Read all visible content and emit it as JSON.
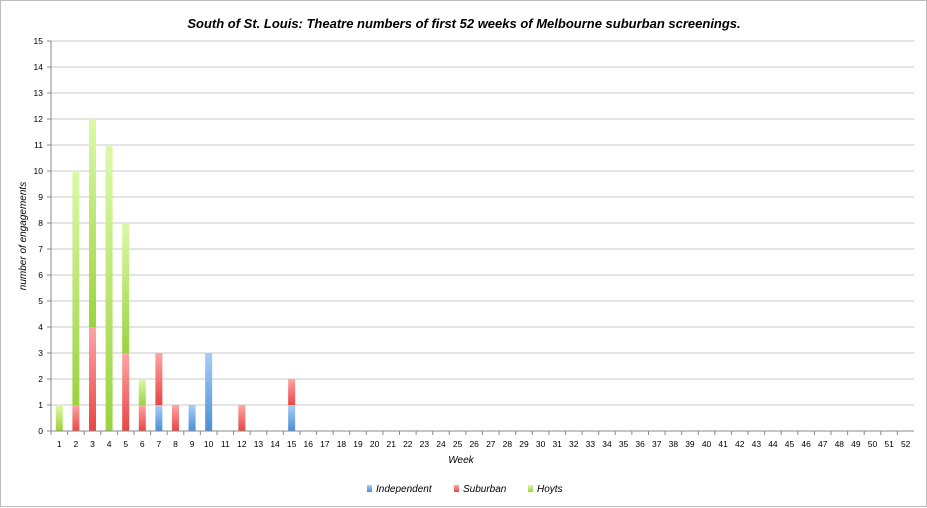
{
  "chart_data": {
    "type": "bar",
    "stacked": true,
    "title": "South of St. Louis: Theatre numbers of first 52 weeks of Melbourne suburban screenings.",
    "xlabel": "Week",
    "ylabel": "number of engagements",
    "ylim": [
      0,
      15
    ],
    "yticks": [
      0,
      1,
      2,
      3,
      4,
      5,
      6,
      7,
      8,
      9,
      10,
      11,
      12,
      13,
      14,
      15
    ],
    "grid": true,
    "legend_position": "bottom",
    "categories": [
      "1",
      "2",
      "3",
      "4",
      "5",
      "6",
      "7",
      "8",
      "9",
      "10",
      "11",
      "12",
      "13",
      "14",
      "15",
      "16",
      "17",
      "18",
      "19",
      "20",
      "21",
      "22",
      "23",
      "24",
      "25",
      "26",
      "27",
      "28",
      "29",
      "30",
      "31",
      "32",
      "33",
      "34",
      "35",
      "36",
      "37",
      "38",
      "39",
      "40",
      "41",
      "42",
      "43",
      "44",
      "45",
      "46",
      "47",
      "48",
      "49",
      "50",
      "51",
      "52"
    ],
    "series": [
      {
        "name": "Independent",
        "color": "#4a90d9",
        "values": [
          0,
          0,
          0,
          0,
          0,
          0,
          1,
          0,
          1,
          3,
          0,
          0,
          0,
          0,
          1,
          0,
          0,
          0,
          0,
          0,
          0,
          0,
          0,
          0,
          0,
          0,
          0,
          0,
          0,
          0,
          0,
          0,
          0,
          0,
          0,
          0,
          0,
          0,
          0,
          0,
          0,
          0,
          0,
          0,
          0,
          0,
          0,
          0,
          0,
          0,
          0,
          0
        ]
      },
      {
        "name": "Suburban",
        "color": "#e84545",
        "values": [
          0,
          1,
          4,
          0,
          3,
          1,
          2,
          1,
          0,
          0,
          0,
          1,
          0,
          0,
          1,
          0,
          0,
          0,
          0,
          0,
          0,
          0,
          0,
          0,
          0,
          0,
          0,
          0,
          0,
          0,
          0,
          0,
          0,
          0,
          0,
          0,
          0,
          0,
          0,
          0,
          0,
          0,
          0,
          0,
          0,
          0,
          0,
          0,
          0,
          0,
          0,
          0
        ]
      },
      {
        "name": "Hoyts",
        "color": "#9bd33f",
        "values": [
          1,
          9,
          8,
          11,
          5,
          1,
          0,
          0,
          0,
          0,
          0,
          0,
          0,
          0,
          0,
          0,
          0,
          0,
          0,
          0,
          0,
          0,
          0,
          0,
          0,
          0,
          0,
          0,
          0,
          0,
          0,
          0,
          0,
          0,
          0,
          0,
          0,
          0,
          0,
          0,
          0,
          0,
          0,
          0,
          0,
          0,
          0,
          0,
          0,
          0,
          0,
          0
        ]
      }
    ]
  }
}
